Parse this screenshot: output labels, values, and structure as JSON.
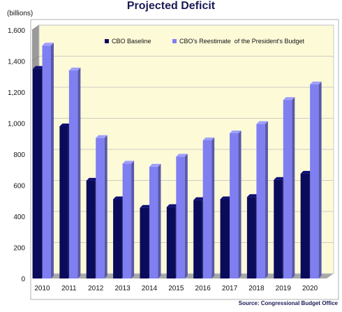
{
  "title": "Projected Deficit",
  "unit_label": "(billions)",
  "source": "Source: Congressional Budget Office",
  "colors": {
    "baseline": "#0b0b5c",
    "reestimate": "#7f7ff2",
    "plot_bg": "#fdfad8",
    "wall": "#9a9a9a",
    "grid": "#bdbdbd"
  },
  "chart_data": {
    "type": "bar",
    "title": "Projected Deficit",
    "ylabel": "(billions)",
    "categories": [
      "2010",
      "2011",
      "2012",
      "2013",
      "2014",
      "2015",
      "2016",
      "2017",
      "2018",
      "2019",
      "2020"
    ],
    "series": [
      {
        "name": "CBO Baseline",
        "values": [
          1350,
          980,
          630,
          510,
          455,
          460,
          505,
          510,
          525,
          635,
          675
        ]
      },
      {
        "name": "CBO's Reestimate  of the President's Budget",
        "values": [
          1500,
          1340,
          905,
          740,
          720,
          785,
          890,
          935,
          995,
          1150,
          1250
        ]
      }
    ],
    "ylim": [
      0,
      1600
    ],
    "yticks": [
      "0",
      "200",
      "400",
      "600",
      "800",
      "1,000",
      "1,200",
      "1,400",
      "1,600"
    ],
    "grid": true,
    "legend_position": "top"
  }
}
